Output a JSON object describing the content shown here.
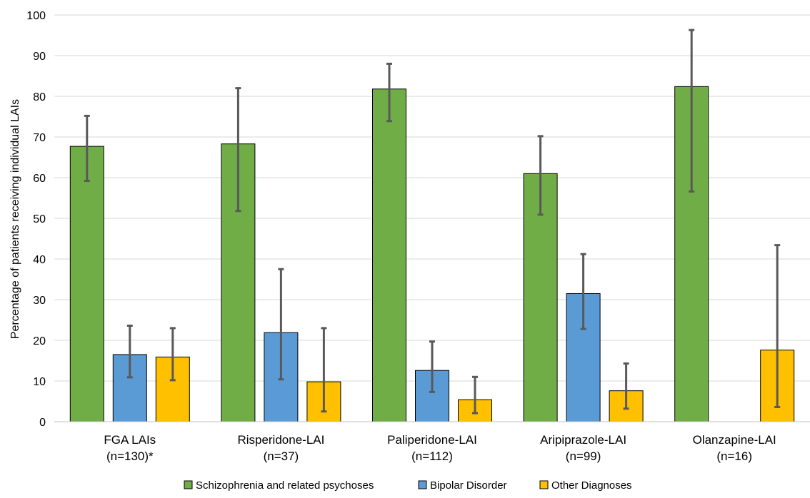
{
  "chart_data": {
    "type": "bar",
    "title": "",
    "xlabel": "",
    "ylabel": "Percentage of patients receiving individual LAIs",
    "ylim": [
      0,
      100
    ],
    "yticks": [
      0,
      10,
      20,
      30,
      40,
      50,
      60,
      70,
      80,
      90,
      100
    ],
    "grid": true,
    "legend_position": "bottom",
    "categories": [
      [
        "FGA LAIs",
        "(n=130)*"
      ],
      [
        "Risperidone-LAI",
        "(n=37)"
      ],
      [
        "Paliperidone-LAI",
        "(n=112)"
      ],
      [
        "Aripiprazole-LAI",
        "(n=99)"
      ],
      [
        "Olanzapine-LAI",
        "(n=16)"
      ]
    ],
    "series": [
      {
        "name": "Schizophrenia and related psychoses",
        "color": "#70ad47",
        "values": [
          67.7,
          68.3,
          81.8,
          61.0,
          82.4
        ],
        "error_low": [
          59.2,
          51.8,
          73.9,
          50.9,
          56.6
        ],
        "error_high": [
          75.2,
          82.0,
          88.0,
          70.2,
          96.3
        ]
      },
      {
        "name": "Bipolar Disorder",
        "color": "#5b9bd5",
        "values": [
          16.5,
          21.9,
          12.6,
          31.5,
          null
        ],
        "error_low": [
          10.9,
          10.4,
          7.3,
          22.8,
          null
        ],
        "error_high": [
          23.6,
          37.5,
          19.7,
          41.2,
          null
        ]
      },
      {
        "name": "Other Diagnoses",
        "color": "#ffc000",
        "values": [
          15.9,
          9.8,
          5.4,
          7.6,
          17.6
        ],
        "error_low": [
          10.2,
          2.5,
          2.1,
          3.2,
          3.6
        ],
        "error_high": [
          23.0,
          23.0,
          11.0,
          14.3,
          43.4
        ]
      }
    ]
  }
}
